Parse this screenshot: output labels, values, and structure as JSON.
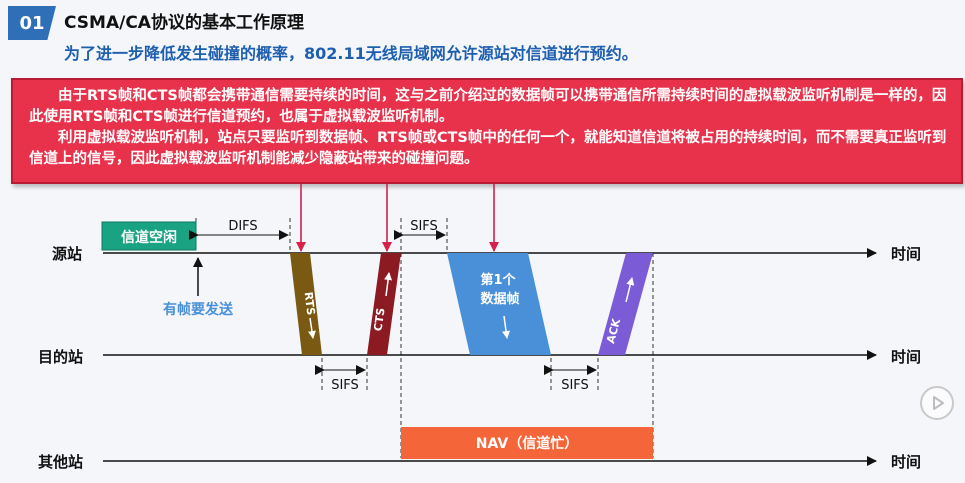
{
  "header": {
    "badge": "01",
    "title": "CSMA/CA协议的基本工作原理",
    "subtitle": "为了进一步降低发生碰撞的概率，802.11无线局域网允许源站对信道进行预约。"
  },
  "note": {
    "paragraph1": "由于RTS帧和CTS帧都会携带通信需要持续的时间，这与之前介绍过的数据帧可以携带通信所需持续时间的虚拟载波监听机制是一样的，因此使用RTS帧和CTS帧进行信道预约，也属于虚拟载波监听机制。",
    "paragraph2": "利用虚拟载波监听机制，站点只要监听到数据帧、RTS帧或CTS帧中的任何一个，就能知道信道将被占用的持续时间，而不需要真正监听到信道上的信号，因此虚拟载波监听机制能减少隐蔽站带来的碰撞问题。"
  },
  "diagram": {
    "stations": {
      "source": "源站",
      "dest": "目的站",
      "other": "其他站"
    },
    "time_label": "时间",
    "channel_idle": "信道空闲",
    "difs": "DIFS",
    "sifs": "SIFS",
    "frame_to_send": "有帧要发送",
    "frames": {
      "rts": "RTS",
      "cts": "CTS",
      "data_line1": "第1个",
      "data_line2": "数据帧",
      "ack": "ACK"
    },
    "nav": "NAV（信道忙）",
    "colors": {
      "rts": "#7a5a12",
      "cts": "#8b1a22",
      "data": "#4a90d9",
      "ack": "#7c5cd6",
      "nav": "#f4653a",
      "idle": "#1aa383",
      "note": "#e8314a",
      "pointer": "#d6204a"
    }
  }
}
